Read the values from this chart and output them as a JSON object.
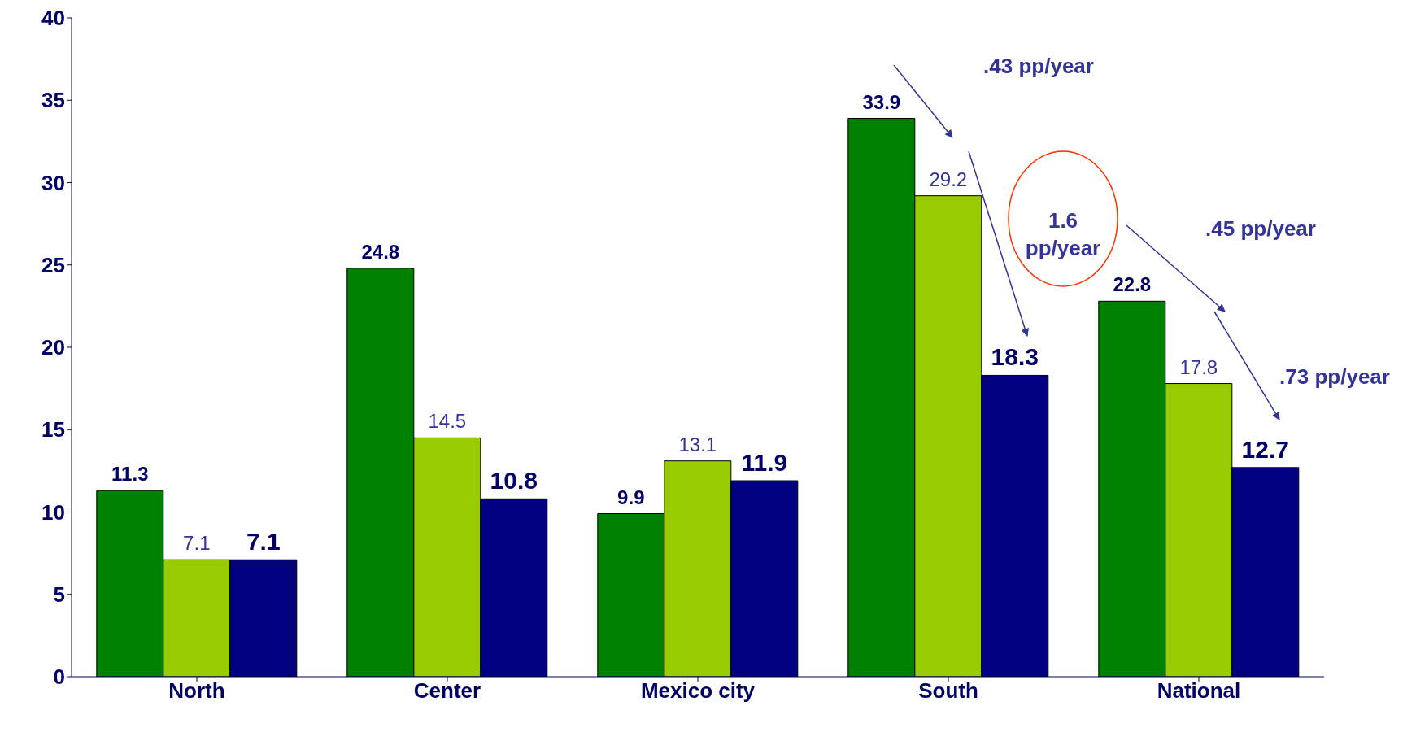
{
  "chart_data": {
    "type": "bar",
    "categories": [
      "North",
      "Center",
      "Mexico city",
      "South",
      "National"
    ],
    "series": [
      {
        "color": "#008000",
        "values": [
          11.3,
          24.8,
          9.9,
          33.9,
          22.8
        ]
      },
      {
        "color": "#99cc00",
        "values": [
          7.1,
          14.5,
          13.1,
          29.2,
          17.8
        ]
      },
      {
        "color": "#000080",
        "values": [
          7.1,
          10.8,
          11.9,
          18.3,
          12.7
        ]
      }
    ],
    "ylim": [
      0,
      40
    ],
    "yticks": [
      0,
      5,
      10,
      15,
      20,
      25,
      30,
      35,
      40
    ],
    "data_labels": true,
    "annotations": [
      ".43 pp/year",
      "1.6 pp/year",
      ".45 pp/year",
      ".73 pp/year"
    ]
  }
}
